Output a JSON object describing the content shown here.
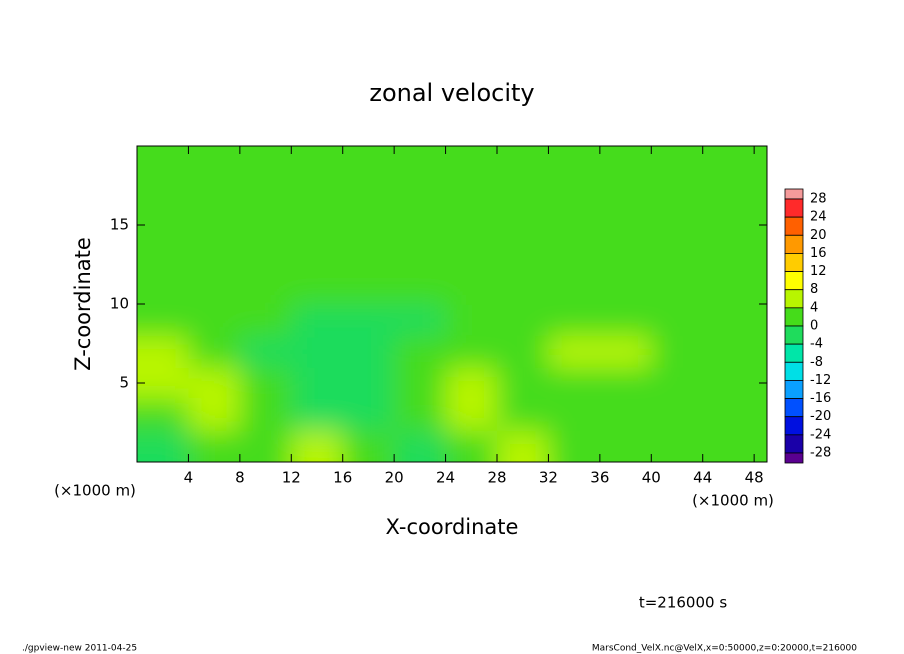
{
  "chart_data": {
    "type": "heatmap",
    "title": "zonal velocity",
    "x_label": "X-coordinate",
    "y_label": "Z-coordinate",
    "x_unit": "(×1000 m)",
    "annotation": "t=216000 s",
    "footer_left": "./gpview-new   2011-04-25",
    "footer_right": "MarsCond_VelX.nc@VelX,x=0:50000,z=0:20000,t=216000",
    "x": [
      2,
      6,
      10,
      14,
      18,
      22,
      26,
      30,
      34,
      38,
      42,
      46
    ],
    "y": [
      1,
      3,
      5,
      7,
      9,
      11,
      13,
      15,
      17,
      19
    ],
    "z": [
      [
        -3,
        2,
        1,
        6,
        1,
        -4,
        2,
        4,
        1,
        1,
        0,
        2
      ],
      [
        3,
        4,
        2,
        -2,
        -1,
        0,
        4,
        2,
        1,
        1,
        1,
        2
      ],
      [
        5,
        4,
        1,
        -2,
        -1,
        3,
        6,
        2,
        1,
        3,
        2,
        1
      ],
      [
        4,
        3,
        -1,
        -4,
        -3,
        2,
        1,
        0,
        5,
        7,
        2,
        2
      ],
      [
        2,
        2,
        0,
        -2,
        -3,
        -1,
        1,
        1,
        2,
        3,
        1,
        2
      ],
      [
        2,
        1,
        1,
        0,
        0,
        0,
        1,
        1,
        2,
        3,
        1,
        2
      ],
      [
        2,
        1,
        2,
        1,
        0,
        1,
        1,
        1,
        1,
        2,
        1,
        1
      ],
      [
        3,
        2,
        2,
        1,
        1,
        1,
        1,
        1,
        1,
        2,
        1,
        2
      ],
      [
        3,
        2,
        2,
        1,
        1,
        1,
        1,
        1,
        2,
        1,
        2,
        3
      ],
      [
        2,
        2,
        2,
        1,
        1,
        1,
        1,
        2,
        2,
        1,
        2,
        3
      ]
    ],
    "xlim": [
      0,
      49
    ],
    "ylim": [
      0,
      20
    ],
    "xticks": [
      4,
      8,
      12,
      16,
      20,
      24,
      28,
      32,
      36,
      40,
      44,
      48
    ],
    "yticks": [
      5,
      10,
      15
    ],
    "colorbar_ticks": [
      28,
      24,
      20,
      16,
      12,
      8,
      4,
      0,
      -4,
      -8,
      -12,
      -16,
      -20,
      -24,
      -28
    ],
    "colors": [
      "#f59a9a",
      "#ff2a2a",
      "#ff6000",
      "#ff9900",
      "#ffcc00",
      "#ffff00",
      "#b8f500",
      "#45dc1a",
      "#1fdc5c",
      "#00e6a8",
      "#00dfe6",
      "#0aa0ff",
      "#0050ff",
      "#0010e0",
      "#1a00a8",
      "#5a0090"
    ]
  }
}
